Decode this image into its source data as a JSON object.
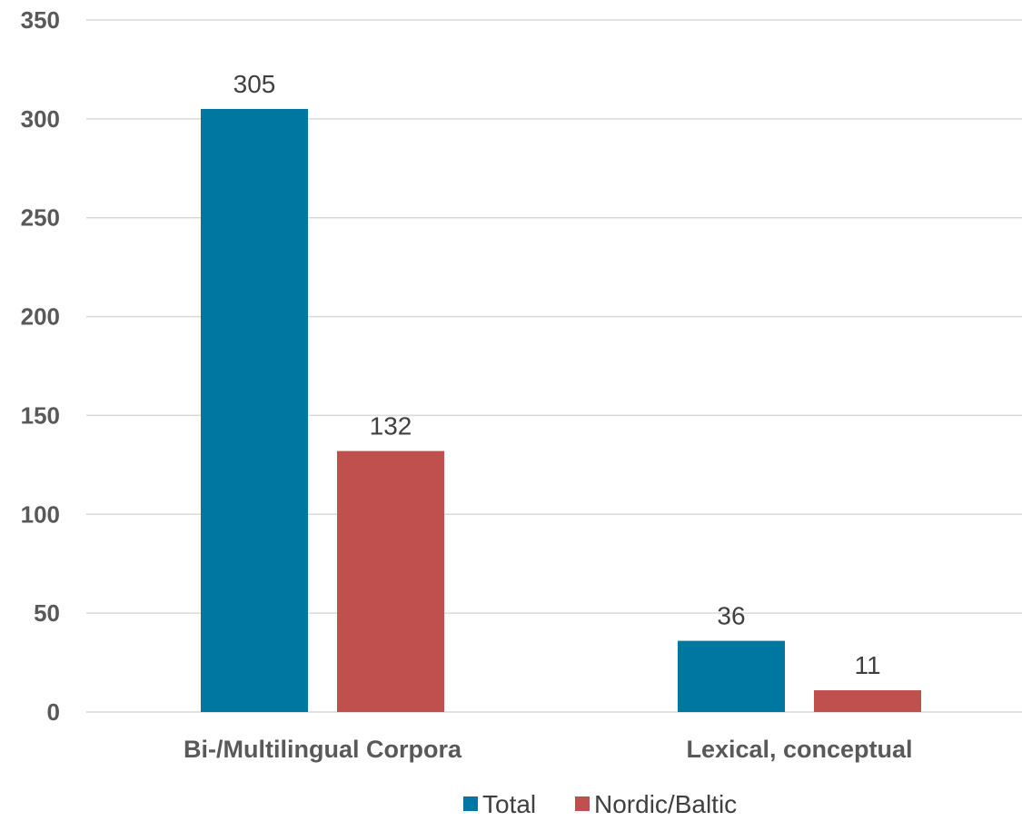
{
  "chart_data": {
    "type": "bar",
    "title": "",
    "xlabel": "",
    "ylabel": "",
    "categories": [
      "Bi-/Multilingual Corpora",
      "Lexical, conceptual"
    ],
    "series": [
      {
        "name": "Total",
        "values": [
          305,
          36
        ],
        "color": "#0077a0"
      },
      {
        "name": "Nordic/Baltic",
        "values": [
          132,
          11
        ],
        "color": "#c0504d"
      }
    ],
    "ylim": [
      0,
      350
    ],
    "yticks": [
      0,
      50,
      100,
      150,
      200,
      250,
      300,
      350
    ],
    "grid": true,
    "legend": "bottom",
    "data_labels": true
  }
}
